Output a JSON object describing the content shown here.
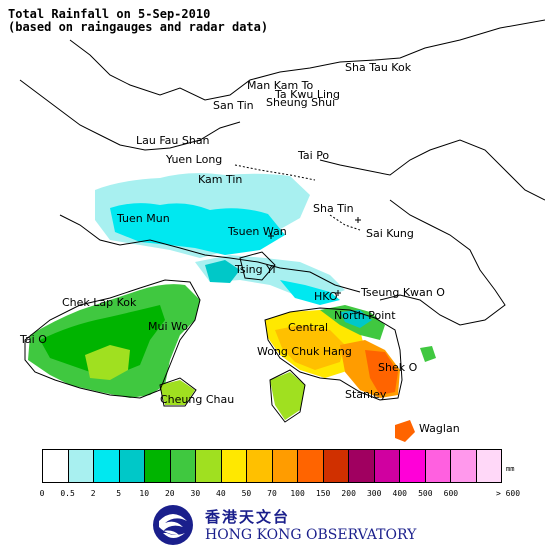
{
  "title": {
    "line1": "Total Rainfall on 5-Sep-2010",
    "line2": "(based on raingauges and radar data)"
  },
  "places": {
    "sha_tau_kok": "Sha Tau Kok",
    "man_kam_to": "Man Kam To",
    "ta_kwu_ling": "Ta Kwu Ling",
    "san_tin": "San Tin",
    "sheung_shui": "Sheung Shui",
    "lau_fau_shan": "Lau Fau Shan",
    "yuen_long": "Yuen Long",
    "tai_po": "Tai Po",
    "kam_tin": "Kam Tin",
    "sha_tin": "Sha Tin",
    "tuen_mun": "Tuen Mun",
    "tsuen_wan": "Tsuen Wan",
    "sai_kung": "Sai Kung",
    "tsing_yi": "Tsing Yi",
    "hko": "HKO",
    "tseung_kwan_o": "Tseung Kwan O",
    "chek_lap_kok": "Chek Lap Kok",
    "north_point": "North Point",
    "central": "Central",
    "mui_wo": "Mui Wo",
    "tai_o": "Tai O",
    "wong_chuk_hang": "Wong Chuk Hang",
    "shek_o": "Shek O",
    "cheung_chau": "Cheung Chau",
    "stanley": "Stanley",
    "waglan": "Waglan"
  },
  "legend": {
    "unit": "mm",
    "colors": [
      "#ffffff",
      "#a8f0f0",
      "#00e8f0",
      "#00c8c8",
      "#00b400",
      "#40c840",
      "#a0e020",
      "#ffe800",
      "#ffc000",
      "#ff9c00",
      "#ff6400",
      "#d03000",
      "#a00060",
      "#d000a0",
      "#ff00d8",
      "#ff60e0",
      "#ff98ec",
      "#ffd8f8"
    ],
    "ticks": [
      "0",
      "0.5",
      "2",
      "5",
      "10",
      "20",
      "30",
      "40",
      "50",
      "70",
      "100",
      "150",
      "200",
      "300",
      "400",
      "500",
      "600",
      "> 600"
    ]
  },
  "logo": {
    "chinese": "香港天文台",
    "english": "HONG KONG OBSERVATORY",
    "brand_color": "#1a1f8c"
  }
}
